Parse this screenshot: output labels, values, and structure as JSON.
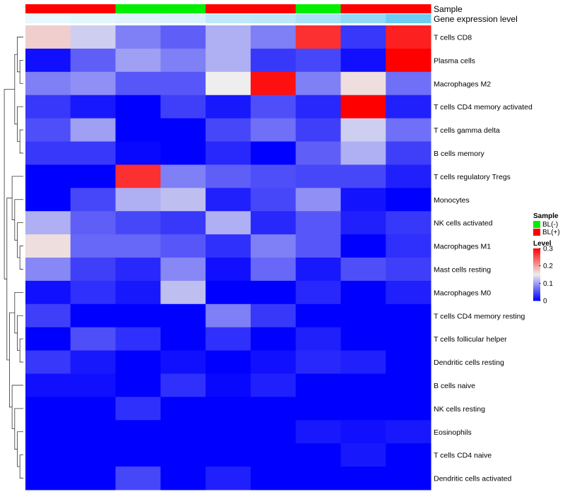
{
  "chart_data": {
    "type": "heatmap",
    "annotations": [
      {
        "label": "Sample",
        "values": [
          "BL(+)",
          "BL(+)",
          "BL(-)",
          "BL(-)",
          "BL(+)",
          "BL(+)",
          "BL(-)",
          "BL(+)",
          "BL(+)"
        ]
      },
      {
        "label": "Gene expression level",
        "values": [
          0.02,
          0.06,
          0.09,
          0.12,
          0.3,
          0.32,
          0.45,
          0.6,
          0.85
        ]
      }
    ],
    "rows": [
      "T cells CD8",
      "Plasma cells",
      "Macrophages M2",
      "T cells CD4 memory activated",
      "T cells gamma delta",
      "B cells memory",
      "T cells regulatory  Tregs",
      "Monocytes",
      "NK cells activated",
      "Macrophages M1",
      "Mast cells resting",
      "Macrophages M0",
      "T cells CD4 memory resting",
      "T cells follicular helper",
      "Dendritic cells resting",
      "B cells naive",
      "NK cells resting",
      "Eosinophils",
      "T cells CD4 naive",
      "Dendritic cells activated"
    ],
    "values": [
      [
        0.17,
        0.13,
        0.08,
        0.06,
        0.11,
        0.08,
        0.27,
        0.035,
        0.28
      ],
      [
        0.01,
        0.06,
        0.1,
        0.08,
        0.11,
        0.035,
        0.045,
        0.01,
        0.3
      ],
      [
        0.08,
        0.09,
        0.055,
        0.055,
        0.15,
        0.29,
        0.08,
        0.16,
        0.07
      ],
      [
        0.035,
        0.015,
        0.0,
        0.04,
        0.015,
        0.05,
        0.025,
        0.3,
        0.02
      ],
      [
        0.05,
        0.1,
        0.0,
        0.0,
        0.045,
        0.07,
        0.04,
        0.13,
        0.07
      ],
      [
        0.035,
        0.035,
        0.005,
        0.0,
        0.025,
        0.0,
        0.06,
        0.11,
        0.04
      ],
      [
        0.0,
        0.0,
        0.27,
        0.08,
        0.06,
        0.05,
        0.045,
        0.045,
        0.02
      ],
      [
        0.0,
        0.045,
        0.11,
        0.12,
        0.02,
        0.045,
        0.09,
        0.012,
        0.0
      ],
      [
        0.11,
        0.06,
        0.045,
        0.035,
        0.11,
        0.025,
        0.055,
        0.02,
        0.035
      ],
      [
        0.16,
        0.065,
        0.065,
        0.055,
        0.03,
        0.08,
        0.055,
        0.0,
        0.03
      ],
      [
        0.085,
        0.04,
        0.025,
        0.085,
        0.01,
        0.065,
        0.015,
        0.05,
        0.04
      ],
      [
        0.01,
        0.03,
        0.015,
        0.12,
        0.0,
        0.0,
        0.025,
        0.0,
        0.02
      ],
      [
        0.04,
        0.0,
        0.0,
        0.0,
        0.08,
        0.035,
        0.0,
        0.0,
        0.0
      ],
      [
        0.0,
        0.05,
        0.03,
        0.0,
        0.03,
        0.0,
        0.02,
        0.0,
        0.0
      ],
      [
        0.035,
        0.015,
        0.0,
        0.01,
        0.0,
        0.01,
        0.025,
        0.02,
        0.0
      ],
      [
        0.01,
        0.01,
        0.0,
        0.03,
        0.005,
        0.02,
        0.0,
        0.0,
        0.0
      ],
      [
        0.0,
        0.0,
        0.03,
        0.0,
        0.0,
        0.0,
        0.0,
        0.0,
        0.0
      ],
      [
        0.0,
        0.0,
        0.0,
        0.0,
        0.0,
        0.0,
        0.015,
        0.01,
        0.015
      ],
      [
        0.0,
        0.0,
        0.0,
        0.0,
        0.0,
        0.0,
        0.0,
        0.015,
        0.0
      ],
      [
        0.0,
        0.0,
        0.045,
        0.0,
        0.02,
        0.0,
        0.0,
        0.0,
        0.0
      ]
    ],
    "color_scale": {
      "min": 0,
      "max": 0.3,
      "low": "#0000FF",
      "mid": "#EEEEEE",
      "high": "#FF0000"
    },
    "legends": {
      "sample": {
        "title": "Sample",
        "items": [
          {
            "label": "BL(-)",
            "color": "#00EE00"
          },
          {
            "label": "BL(+)",
            "color": "#FF0000"
          }
        ]
      },
      "level": {
        "title": "Level",
        "ticks": [
          {
            "label": "0.3",
            "value": 0.3
          },
          {
            "label": "0.2",
            "value": 0.2
          },
          {
            "label": "0.1",
            "value": 0.1
          },
          {
            "label": "0",
            "value": 0
          }
        ]
      }
    },
    "dendrogram": "rows"
  }
}
